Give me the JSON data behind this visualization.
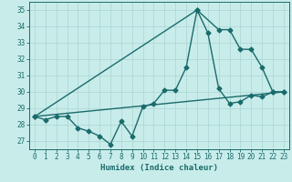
{
  "xlabel": "Humidex (Indice chaleur)",
  "bg_color": "#c8ecea",
  "grid_color": "#aed8d5",
  "line_color": "#1a6b6b",
  "xlim": [
    -0.5,
    23.5
  ],
  "ylim": [
    26.5,
    35.5
  ],
  "xticks": [
    0,
    1,
    2,
    3,
    4,
    5,
    6,
    7,
    8,
    9,
    10,
    11,
    12,
    13,
    14,
    15,
    16,
    17,
    18,
    19,
    20,
    21,
    22,
    23
  ],
  "yticks": [
    27,
    28,
    29,
    30,
    31,
    32,
    33,
    34,
    35
  ],
  "line1_x": [
    0,
    1,
    2,
    3,
    4,
    5,
    6,
    7,
    8,
    9,
    10,
    11,
    12,
    13,
    14,
    15,
    16,
    17,
    18,
    19,
    20,
    21,
    22,
    23
  ],
  "line1_y": [
    28.5,
    28.3,
    28.5,
    28.5,
    27.8,
    27.6,
    27.3,
    26.8,
    28.2,
    27.3,
    29.1,
    29.3,
    30.1,
    30.1,
    31.5,
    35.0,
    33.6,
    30.2,
    29.3,
    29.4,
    29.8,
    29.7,
    30.0,
    30.0
  ],
  "line2_x": [
    0,
    23
  ],
  "line2_y": [
    28.5,
    30.0
  ],
  "line3_x": [
    0,
    15,
    17,
    18,
    19,
    20,
    21,
    22,
    23
  ],
  "line3_y": [
    28.5,
    35.0,
    33.8,
    33.8,
    32.6,
    32.6,
    31.5,
    30.0,
    30.0
  ]
}
